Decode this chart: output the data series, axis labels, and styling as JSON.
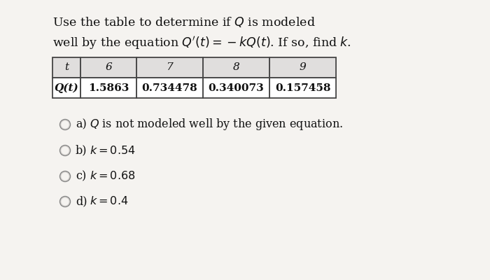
{
  "title_line1": "Use the table to determine if $Q$ is modeled",
  "title_line2": "well by the equation $Q^{\\prime}(t) = -kQ(t)$. If so, find $k$.",
  "table_t_header": "t",
  "table_col_headers": [
    "6",
    "7",
    "8",
    "9"
  ],
  "table_row_label": "Q(t)",
  "table_values": [
    "1.5863",
    "0.734478",
    "0.340073",
    "0.157458"
  ],
  "options": [
    [
      "a)",
      "$Q$ is not modeled well by the given equation."
    ],
    [
      "b)",
      "$k = 0.54$"
    ],
    [
      "c)",
      "$k = 0.68$"
    ],
    [
      "d)",
      "$k = 0.4$"
    ]
  ],
  "bg_color": "#f5f3f0",
  "text_color": "#111111",
  "table_header_bg": "#e0dedd",
  "table_body_bg": "#ffffff",
  "table_border_color": "#444444",
  "circle_edge_color": "#888888",
  "circle_face_color": "#d8d5d2",
  "title_fontsize": 12.5,
  "option_fontsize": 11.5,
  "table_fontsize": 11.0
}
